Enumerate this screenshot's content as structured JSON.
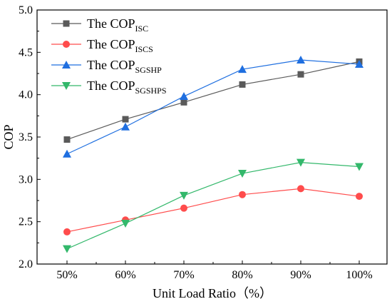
{
  "chart_data": {
    "type": "line",
    "title": "",
    "xlabel": "Unit Load Ratio（%）",
    "ylabel": "COP",
    "categories": [
      "50%",
      "60%",
      "70%",
      "80%",
      "90%",
      "100%"
    ],
    "yticks": [
      "2.0",
      "2.5",
      "3.0",
      "3.5",
      "4.0",
      "4.5",
      "5.0"
    ],
    "ylim": [
      2.0,
      5.0
    ],
    "grid": false,
    "legend_position": "top-left",
    "series": [
      {
        "name": "The COP",
        "subscript": "ISC",
        "color": "#5a5a5a",
        "marker": "square",
        "values": [
          3.47,
          3.71,
          3.91,
          4.12,
          4.24,
          4.39
        ]
      },
      {
        "name": "The COP",
        "subscript": "ISCS",
        "color": "#ff4c4c",
        "marker": "circle",
        "values": [
          2.38,
          2.52,
          2.66,
          2.82,
          2.89,
          2.8
        ]
      },
      {
        "name": "The COP",
        "subscript": "SGSHP",
        "color": "#1f6fe0",
        "marker": "triangle-up",
        "values": [
          3.3,
          3.62,
          3.98,
          4.3,
          4.41,
          4.36
        ]
      },
      {
        "name": "The COP",
        "subscript": "SGSHPS",
        "color": "#33b86b",
        "marker": "triangle-down",
        "values": [
          2.18,
          2.48,
          2.81,
          3.07,
          3.2,
          3.15
        ]
      }
    ]
  }
}
